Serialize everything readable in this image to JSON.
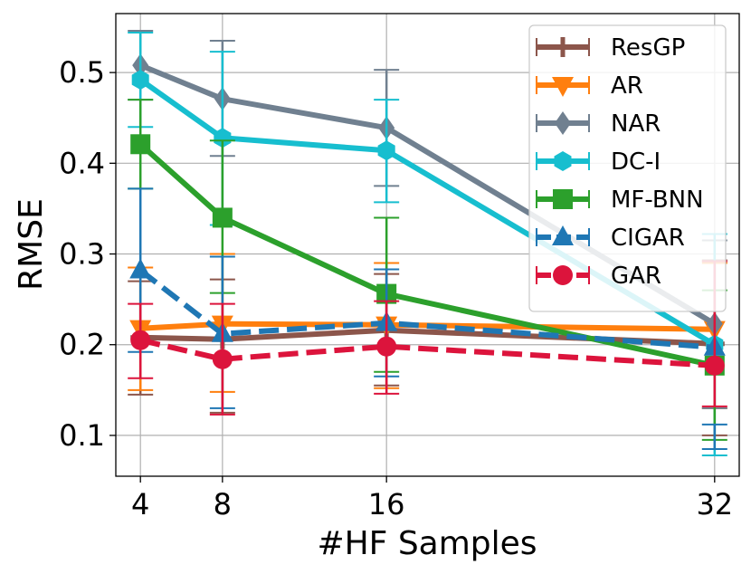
{
  "chart_data": {
    "type": "line",
    "title": "",
    "xlabel": "#HF Samples",
    "ylabel": "RMSE",
    "x": [
      4,
      8,
      16,
      32
    ],
    "xticks": [
      "4",
      "8",
      "16",
      "32"
    ],
    "yticks": [
      "0.1",
      "0.2",
      "0.3",
      "0.4",
      "0.5"
    ],
    "xlim": [
      2.8,
      33.2
    ],
    "ylim": [
      0.055,
      0.565
    ],
    "grid": true,
    "legend_position": "top-right",
    "series": [
      {
        "name": "ResGP",
        "color": "#8c564b",
        "marker": "plus",
        "dashed": false,
        "values": [
          0.208,
          0.206,
          0.216,
          0.201
        ],
        "err_low": [
          0.145,
          0.125,
          0.155,
          0.1
        ],
        "err_high": [
          0.27,
          0.272,
          0.278,
          0.293
        ]
      },
      {
        "name": "AR",
        "color": "#ff7f0e",
        "marker": "triangle-down",
        "dashed": false,
        "values": [
          0.218,
          0.223,
          0.222,
          0.217
        ],
        "err_low": [
          0.15,
          0.148,
          0.152,
          0.13
        ],
        "err_high": [
          0.285,
          0.3,
          0.29,
          0.29
        ]
      },
      {
        "name": "NAR",
        "color": "#708090",
        "marker": "diamond",
        "dashed": false,
        "values": [
          0.508,
          0.471,
          0.439,
          0.223
        ],
        "err_low": [
          0.47,
          0.408,
          0.375,
          0.13
        ],
        "err_high": [
          0.546,
          0.535,
          0.503,
          0.315
        ]
      },
      {
        "name": "DC-I",
        "color": "#17becf",
        "marker": "hexagon",
        "dashed": false,
        "values": [
          0.492,
          0.428,
          0.414,
          0.2
        ],
        "err_low": [
          0.44,
          0.332,
          0.357,
          0.078
        ],
        "err_high": [
          0.544,
          0.523,
          0.47,
          0.322
        ]
      },
      {
        "name": "MF-BNN",
        "color": "#2ca02c",
        "marker": "square",
        "dashed": false,
        "values": [
          0.421,
          0.34,
          0.256,
          0.177
        ],
        "err_low": [
          0.372,
          0.257,
          0.17,
          0.095
        ],
        "err_high": [
          0.47,
          0.425,
          0.34,
          0.26
        ]
      },
      {
        "name": "CIGAR",
        "color": "#1f77b4",
        "marker": "triangle-up",
        "dashed": true,
        "values": [
          0.282,
          0.212,
          0.224,
          0.197
        ],
        "err_low": [
          0.192,
          0.13,
          0.165,
          0.085
        ],
        "err_high": [
          0.372,
          0.297,
          0.283,
          0.112
        ]
      },
      {
        "name": "GAR",
        "color": "#dc143c",
        "marker": "circle",
        "dashed": true,
        "values": [
          0.205,
          0.184,
          0.198,
          0.177
        ],
        "err_low": [
          0.163,
          0.123,
          0.146,
          0.132
        ],
        "err_high": [
          0.245,
          0.245,
          0.248,
          0.292
        ]
      }
    ]
  }
}
